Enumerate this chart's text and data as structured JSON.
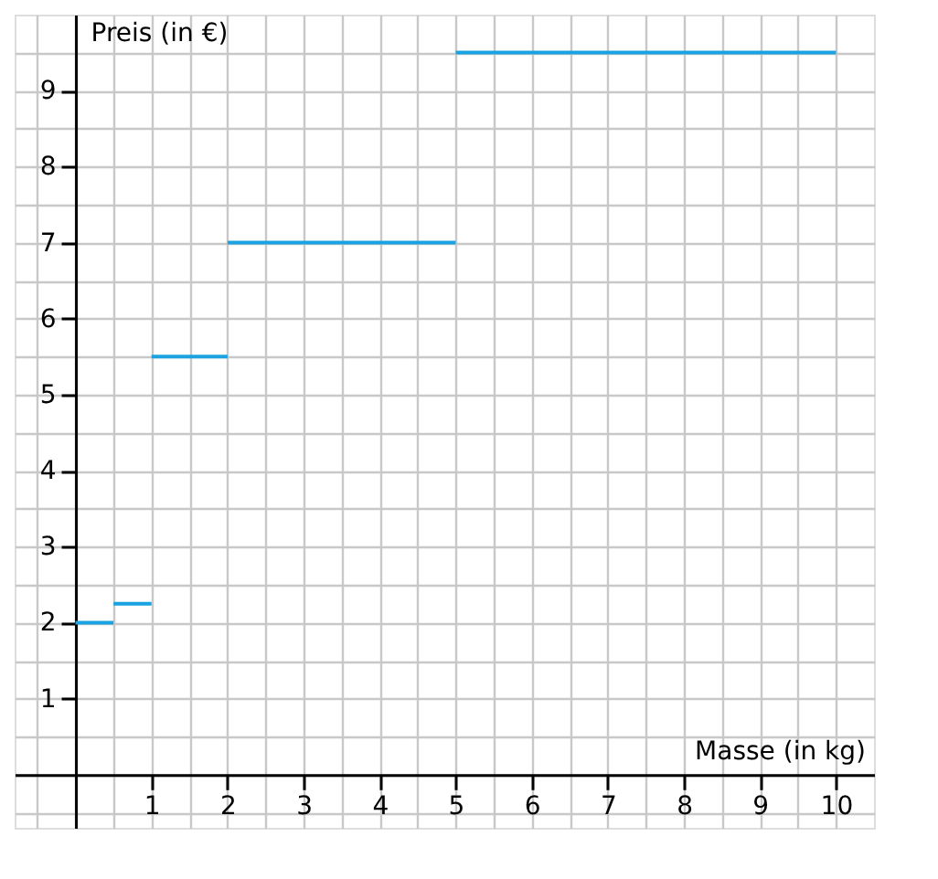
{
  "chart_data": {
    "type": "line",
    "xlabel": "Masse (in kg)",
    "ylabel": "Preis (in €)",
    "xlim": [
      -0.8,
      10.5
    ],
    "ylim": [
      -0.7,
      10
    ],
    "xticks": [
      {
        "value": -0.5,
        "label": null
      },
      {
        "value": 0,
        "label": null
      },
      {
        "value": 0.5,
        "label": null
      },
      1,
      {
        "value": 1.5,
        "label": null
      },
      2,
      {
        "value": 2.5,
        "label": null
      },
      3,
      {
        "value": 3.5,
        "label": null
      },
      4,
      {
        "value": 4.5,
        "label": null
      },
      5,
      {
        "value": 5.5,
        "label": null
      },
      6,
      {
        "value": 6.5,
        "label": null
      },
      7,
      {
        "value": 7.5,
        "label": null
      },
      8,
      {
        "value": 8.5,
        "label": null
      },
      9,
      {
        "value": 9.5,
        "label": null
      },
      10
    ],
    "yticks": [
      {
        "value": -0.5,
        "label": null
      },
      {
        "value": 0,
        "label": null
      },
      {
        "value": 0.5,
        "label": null
      },
      1,
      {
        "value": 1.5,
        "label": null
      },
      2,
      {
        "value": 2.5,
        "label": null
      },
      3,
      {
        "value": 3.5,
        "label": null
      },
      4,
      {
        "value": 4.5,
        "label": null
      },
      5,
      {
        "value": 5.5,
        "label": null
      },
      6,
      {
        "value": 6.5,
        "label": null
      },
      7,
      {
        "value": 7.5,
        "label": null
      },
      8,
      {
        "value": 8.5,
        "label": null
      },
      9,
      {
        "value": 9.5,
        "label": null
      }
    ],
    "grid": true,
    "legend": false,
    "series": [
      {
        "color": "#1aa3e0",
        "x": [
          0,
          0.5
        ],
        "values": [
          2,
          2
        ]
      },
      {
        "color": "#1aa3e0",
        "x": [
          0.5,
          1
        ],
        "values": [
          2.25,
          2.25
        ]
      },
      {
        "color": "#1aa3e0",
        "x": [
          1,
          2
        ],
        "values": [
          5.5,
          5.5
        ]
      },
      {
        "color": "#1aa3e0",
        "x": [
          2,
          5
        ],
        "values": [
          7,
          7
        ]
      },
      {
        "color": "#1aa3e0",
        "x": [
          5,
          10
        ],
        "values": [
          9.5,
          9.5
        ]
      }
    ]
  }
}
